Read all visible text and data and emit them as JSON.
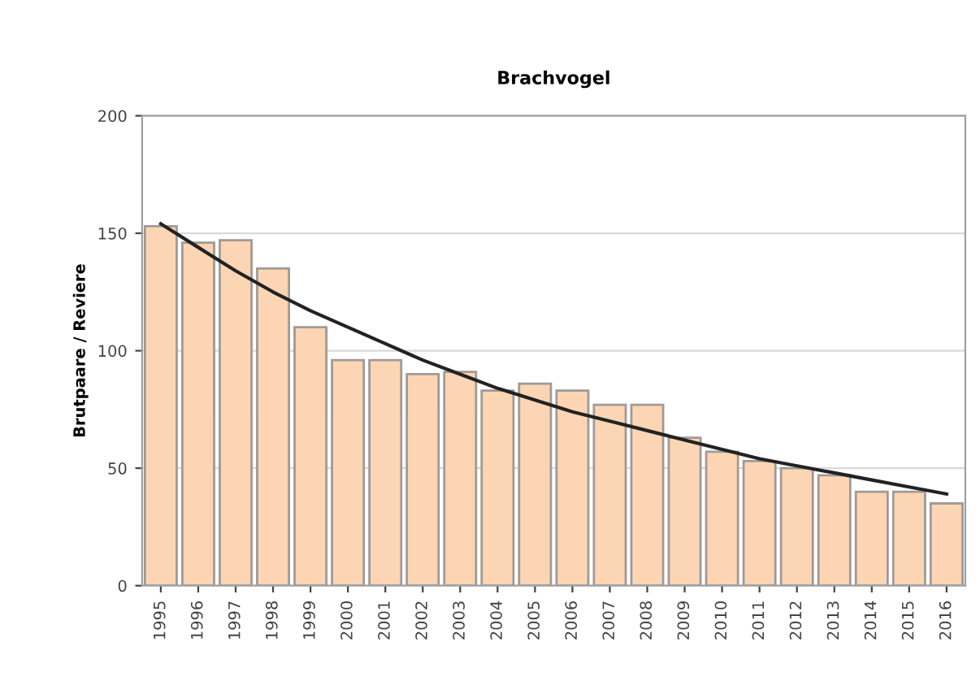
{
  "chart_data": {
    "type": "bar",
    "title": "Brachvogel",
    "ylabel": "Brutpaare / Reviere",
    "categories": [
      "1995",
      "1996",
      "1997",
      "1998",
      "1999",
      "2000",
      "2001",
      "2002",
      "2003",
      "2004",
      "2005",
      "2006",
      "2007",
      "2008",
      "2009",
      "2010",
      "2011",
      "2012",
      "2013",
      "2014",
      "2015",
      "2016"
    ],
    "series": [
      {
        "color": "#fcd5b4",
        "values": [
          153,
          146,
          147,
          135,
          110,
          96,
          96,
          90,
          91,
          83,
          86,
          83,
          77,
          77,
          63,
          57,
          53,
          50,
          47,
          40,
          40,
          35
        ]
      },
      {
        "type": "line",
        "color": "#222222",
        "values": [
          154,
          144,
          134,
          125,
          117,
          110,
          103,
          96,
          90,
          84,
          79,
          74,
          70,
          66,
          62,
          58,
          54,
          51,
          48,
          45,
          42,
          39
        ]
      }
    ],
    "ylim": [
      0,
      200
    ],
    "yticks": [
      0,
      50,
      100,
      150,
      200
    ],
    "grid": "y",
    "legend": false
  }
}
